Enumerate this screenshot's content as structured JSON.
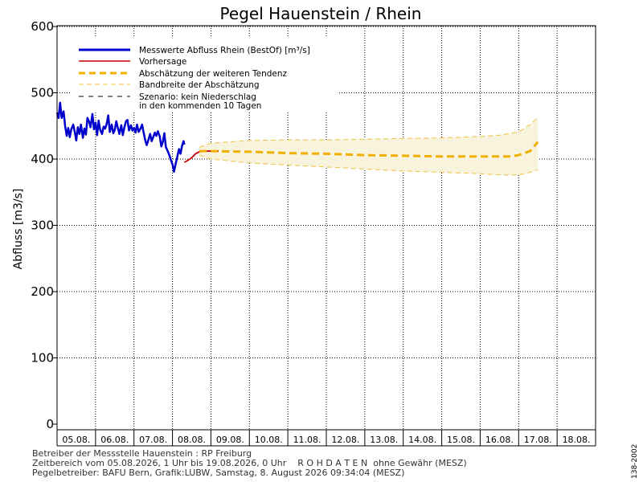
{
  "chart_data": {
    "type": "line",
    "title": "Pegel Hauenstein / Rhein",
    "ylabel": "Abfluss [m3/s]",
    "xlabel": "",
    "ylim": [
      0,
      600
    ],
    "yticks": [
      0,
      100,
      200,
      300,
      400,
      500,
      600
    ],
    "x_categories": [
      "05.08.",
      "06.08.",
      "07.08.",
      "08.08.",
      "09.08.",
      "10.08.",
      "11.08.",
      "12.08.",
      "13.08.",
      "14.08.",
      "15.08.",
      "16.08.",
      "17.08.",
      "18.08."
    ],
    "grid": true,
    "legend_position": "top-left",
    "series": [
      {
        "name": "Messwerte Abfluss Rhein (BestOf) [m³/s]",
        "color": "#0000cc",
        "style": "solid-thick",
        "x": [
          0.0,
          0.04,
          0.08,
          0.12,
          0.17,
          0.21,
          0.25,
          0.29,
          0.33,
          0.37,
          0.42,
          0.46,
          0.5,
          0.54,
          0.58,
          0.62,
          0.67,
          0.71,
          0.75,
          0.79,
          0.83,
          0.87,
          0.92,
          0.96,
          1.0,
          1.04,
          1.08,
          1.12,
          1.17,
          1.21,
          1.25,
          1.29,
          1.33,
          1.37,
          1.42,
          1.46,
          1.5,
          1.54,
          1.58,
          1.62,
          1.67,
          1.71,
          1.75,
          1.79,
          1.83,
          1.87,
          1.92,
          1.96,
          2.0,
          2.04,
          2.08,
          2.12,
          2.17,
          2.21,
          2.25,
          2.29,
          2.33,
          2.37,
          2.42,
          2.46,
          2.5,
          2.54,
          2.58,
          2.62,
          2.67,
          2.71,
          2.75,
          2.79,
          2.83,
          2.87,
          2.92,
          2.96,
          3.0,
          3.04,
          3.08,
          3.12,
          3.17,
          3.21,
          3.25,
          3.29,
          3.31
        ],
        "values": [
          470,
          462,
          485,
          462,
          472,
          450,
          435,
          447,
          433,
          445,
          452,
          441,
          428,
          448,
          438,
          452,
          432,
          446,
          437,
          462,
          457,
          448,
          468,
          445,
          455,
          436,
          458,
          444,
          438,
          449,
          446,
          453,
          466,
          441,
          452,
          439,
          444,
          457,
          447,
          438,
          451,
          436,
          448,
          457,
          459,
          443,
          451,
          443,
          447,
          440,
          452,
          441,
          446,
          452,
          440,
          429,
          421,
          428,
          438,
          427,
          433,
          440,
          435,
          442,
          434,
          419,
          426,
          439,
          418,
          413,
          406,
          398,
          392,
          381,
          392,
          402,
          415,
          408,
          420,
          427,
          422
        ]
      },
      {
        "name": "Vorhersage",
        "color": "#cc0000",
        "style": "solid",
        "x": [
          3.31,
          3.4,
          3.5,
          3.6,
          3.7,
          3.8,
          4.0,
          4.2
        ],
        "values": [
          395,
          398,
          402,
          408,
          411,
          412,
          412,
          412
        ]
      },
      {
        "name": "Abschätzung der weiteren Tendenz",
        "color": "#f0b000",
        "style": "dashed-thick",
        "x": [
          3.7,
          4.0,
          5.0,
          6.0,
          7.0,
          8.0,
          9.0,
          10.0,
          11.0,
          11.5,
          11.8,
          12.0,
          12.3,
          12.5
        ],
        "values": [
          412,
          412,
          411,
          409,
          408,
          406,
          405,
          404,
          404,
          404,
          404,
          406,
          412,
          426
        ]
      },
      {
        "name": "Bandbreite der Abschätzung",
        "color": "#f0c040",
        "style": "dashed-thin",
        "upper": {
          "x": [
            3.7,
            4.0,
            5.0,
            6.0,
            7.0,
            8.0,
            9.0,
            10.0,
            11.0,
            11.5,
            12.0,
            12.3,
            12.5
          ],
          "values": [
            418,
            424,
            428,
            429,
            429,
            430,
            431,
            432,
            434,
            436,
            441,
            452,
            463
          ]
        },
        "lower": {
          "x": [
            3.7,
            4.0,
            5.0,
            6.0,
            7.0,
            8.0,
            9.0,
            10.0,
            11.0,
            11.5,
            12.0,
            12.3,
            12.5
          ],
          "values": [
            406,
            400,
            394,
            391,
            388,
            385,
            382,
            380,
            378,
            376,
            376,
            380,
            384
          ]
        }
      },
      {
        "name": "Szenario: kein Niederschlag in den kommenden 10 Tagen",
        "color": "#000000",
        "style": "dashed-thin",
        "x": [],
        "values": []
      }
    ]
  },
  "legend": {
    "measured": "Messwerte Abfluss Rhein (BestOf)  [m³/s]",
    "forecast": "Vorhersage",
    "trend": "Abschätzung der weiteren Tendenz",
    "band": "Bandbreite der Abschätzung",
    "scenario_line1": "Szenario: kein Niederschlag",
    "scenario_line2": "in den kommenden 10 Tagen"
  },
  "footer": {
    "line1": "Betreiber der Messstelle Hauenstein : RP Freiburg",
    "line2": "Zeitbereich vom 05.08.2026, 1 Uhr bis 19.08.2026, 0 Uhr    R O H D A T E N  ohne Gewähr (MESZ)",
    "line3": "Pegelbetreiber: BAFU Bern, Grafik:LUBW, Samstag, 8. August 2026 09:34:04 (MESZ)"
  },
  "side_code": "138-2002",
  "colors": {
    "measured": "#0000cc",
    "forecast": "#cc0000",
    "trend": "#f0b000",
    "band_fill": "#f7f3dc"
  }
}
